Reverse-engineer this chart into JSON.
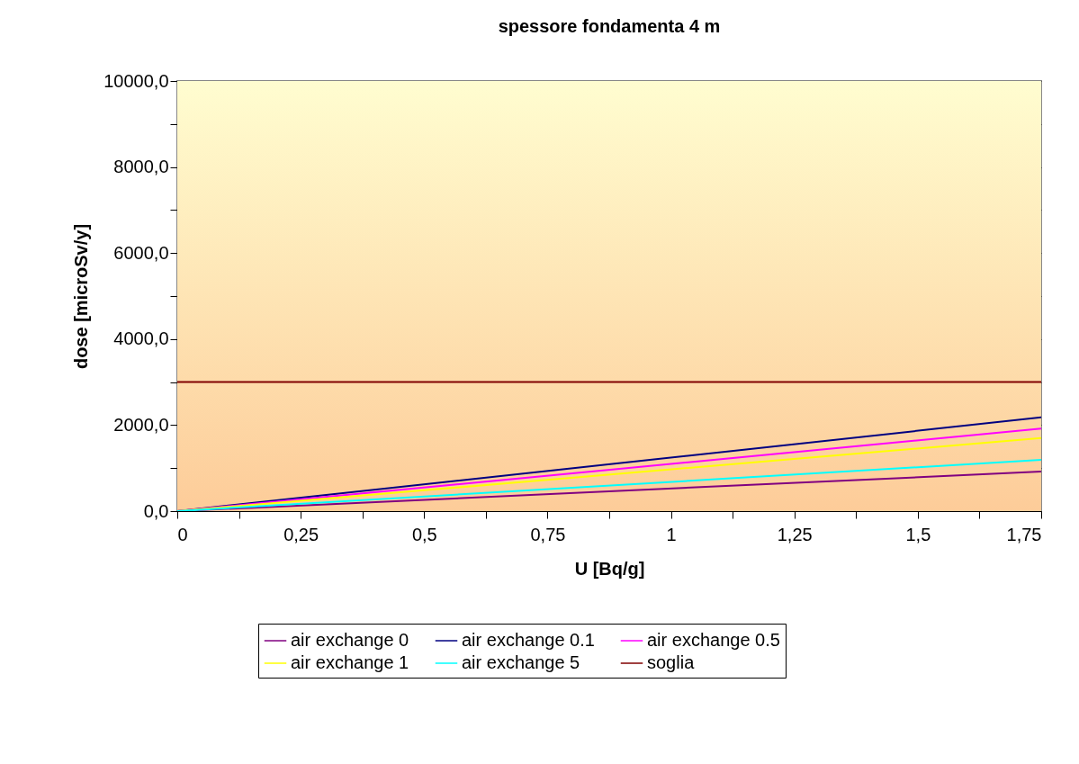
{
  "chart_data": {
    "type": "line",
    "title": "spessore fondamenta 4 m",
    "xlabel": "U [Bq/g]",
    "ylabel": "dose [microSv/y]",
    "x": [
      0,
      1.75
    ],
    "series": [
      {
        "name": "air exchange 0",
        "color": "#800080",
        "values": [
          0,
          920
        ]
      },
      {
        "name": "air exchange 0.1",
        "color": "#000080",
        "values": [
          0,
          2180
        ]
      },
      {
        "name": "air exchange 0.5",
        "color": "#ff00ff",
        "values": [
          0,
          1920
        ]
      },
      {
        "name": "air exchange 1",
        "color": "#ffff00",
        "values": [
          0,
          1700
        ]
      },
      {
        "name": "air exchange 5",
        "color": "#00ffff",
        "values": [
          0,
          1190
        ]
      },
      {
        "name": "soglia",
        "color": "#800000",
        "values": [
          3000,
          3000
        ]
      }
    ],
    "xlim": [
      0,
      1.75
    ],
    "xticks": [
      0,
      {
        "value": 0.125,
        "label": null
      },
      {
        "value": 0.25,
        "label": "0,25"
      },
      {
        "value": 0.375,
        "label": null
      },
      {
        "value": 0.5,
        "label": "0,5"
      },
      {
        "value": 0.625,
        "label": null
      },
      {
        "value": 0.75,
        "label": "0,75"
      },
      {
        "value": 0.875,
        "label": null
      },
      1,
      {
        "value": 1.125,
        "label": null
      },
      {
        "value": 1.25,
        "label": "1,25"
      },
      {
        "value": 1.375,
        "label": null
      },
      {
        "value": 1.5,
        "label": "1,5"
      },
      {
        "value": 1.625,
        "label": null
      },
      {
        "value": 1.75,
        "label": "1,75"
      }
    ],
    "ylim": [
      0,
      10000
    ],
    "yticks": [
      {
        "value": 0,
        "label": "0,0"
      },
      {
        "value": 1000,
        "label": null
      },
      {
        "value": 2000,
        "label": "2000,0"
      },
      {
        "value": 3000,
        "label": null
      },
      {
        "value": 4000,
        "label": "4000,0"
      },
      {
        "value": 5000,
        "label": null
      },
      {
        "value": 6000,
        "label": "6000,0"
      },
      {
        "value": 7000,
        "label": null
      },
      {
        "value": 8000,
        "label": "8000,0"
      },
      {
        "value": 9000,
        "label": null
      },
      {
        "value": 10000,
        "label": "10000,0"
      }
    ],
    "grid": "y",
    "legend": "bottom",
    "marker": "none",
    "line_style": "solid"
  }
}
